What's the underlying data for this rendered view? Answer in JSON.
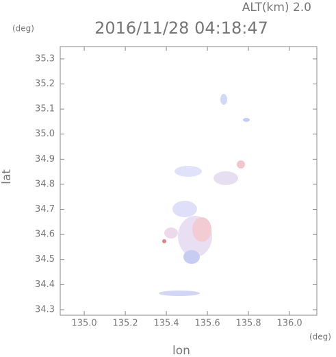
{
  "chart_data": {
    "type": "map",
    "title": "2016/11/28 04:18:47",
    "subtitle": "ALT(km) 2.0",
    "x_label": "lon",
    "y_label": "lat",
    "x_unit": "(deg)",
    "y_unit": "(deg)",
    "xlim": [
      134.883,
      136.133
    ],
    "ylim": [
      34.278,
      35.349
    ],
    "xticks": [
      {
        "value": 135,
        "label": "135.0"
      },
      135.2,
      135.4,
      135.6,
      135.8,
      {
        "value": 136,
        "label": "136.0"
      }
    ],
    "yticks": [
      34.3,
      34.4,
      34.5,
      34.6,
      34.7,
      34.8,
      34.9,
      {
        "value": 35,
        "label": "35.0"
      },
      35.1,
      35.2,
      35.3
    ]
  }
}
